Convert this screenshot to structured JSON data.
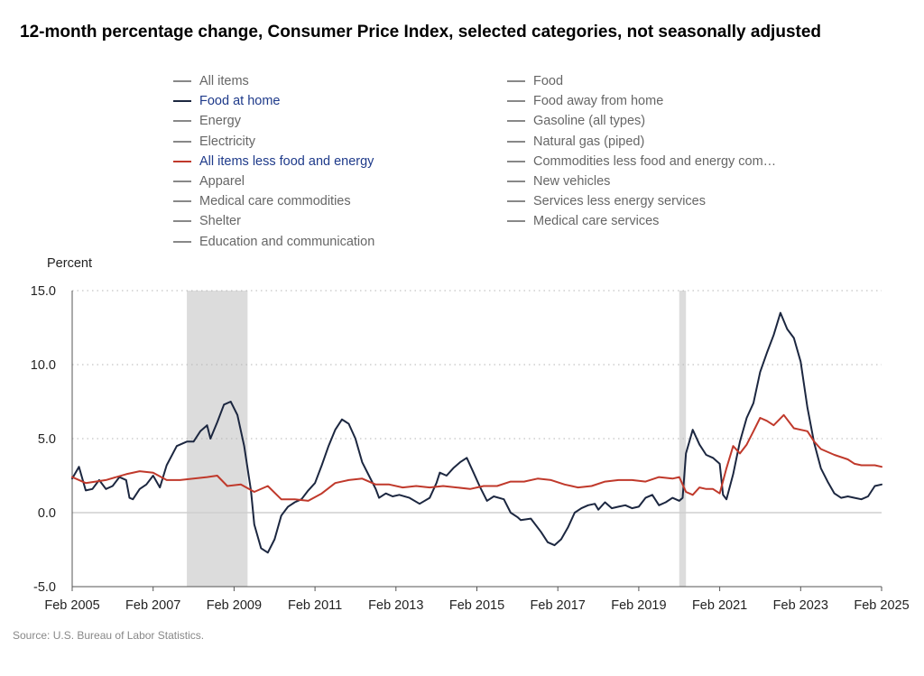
{
  "title": "12-month percentage change, Consumer Price Index, selected categories, not seasonally adjusted",
  "source": "Source: U.S. Bureau of Labor Statistics.",
  "legend": {
    "left": [
      {
        "label": "All items",
        "color": "#888888",
        "active": false
      },
      {
        "label": "Food at home",
        "color": "#1c2740",
        "active": true
      },
      {
        "label": "Energy",
        "color": "#888888",
        "active": false
      },
      {
        "label": "Electricity",
        "color": "#888888",
        "active": false
      },
      {
        "label": "All items less food and energy",
        "color": "#c0392b",
        "active": true
      },
      {
        "label": "Apparel",
        "color": "#888888",
        "active": false
      },
      {
        "label": "Medical care commodities",
        "color": "#888888",
        "active": false
      },
      {
        "label": "Shelter",
        "color": "#888888",
        "active": false
      },
      {
        "label": "Education and communication",
        "color": "#888888",
        "active": false
      }
    ],
    "right": [
      {
        "label": "Food",
        "color": "#888888",
        "active": false
      },
      {
        "label": "Food away from home",
        "color": "#888888",
        "active": false
      },
      {
        "label": "Gasoline (all types)",
        "color": "#888888",
        "active": false
      },
      {
        "label": "Natural gas (piped)",
        "color": "#888888",
        "active": false
      },
      {
        "label": "Commodities less food and energy com…",
        "color": "#888888",
        "active": false
      },
      {
        "label": "New vehicles",
        "color": "#888888",
        "active": false
      },
      {
        "label": "Services less energy services",
        "color": "#888888",
        "active": false
      },
      {
        "label": "Medical care services",
        "color": "#888888",
        "active": false
      }
    ]
  },
  "chart_data": {
    "type": "line",
    "title": "12-month percentage change, Consumer Price Index, selected categories, not seasonally adjusted",
    "ylabel": "Percent",
    "xlabel": "",
    "ylim": [
      -5,
      15
    ],
    "xlim": [
      "2005-02",
      "2025-02"
    ],
    "yticks": [
      15.0,
      10.0,
      5.0,
      0.0,
      -5.0
    ],
    "ytick_labels": [
      "15.0",
      "10.0",
      "5.0",
      "0.0",
      "-5.0"
    ],
    "xtick_labels": [
      "Feb 2005",
      "Feb 2007",
      "Feb 2009",
      "Feb 2011",
      "Feb 2013",
      "Feb 2015",
      "Feb 2017",
      "Feb 2019",
      "Feb 2021",
      "Feb 2023",
      "Feb 2025"
    ],
    "grid": "horizontal dotted",
    "recessions": [
      {
        "start": "2007-12",
        "end": "2009-06"
      },
      {
        "start": "2020-02",
        "end": "2020-04"
      }
    ],
    "series": [
      {
        "name": "Food at home",
        "color": "#1c2740",
        "points": [
          [
            "2005-02",
            2.3
          ],
          [
            "2005-04",
            3.1
          ],
          [
            "2005-06",
            1.5
          ],
          [
            "2005-08",
            1.6
          ],
          [
            "2005-10",
            2.2
          ],
          [
            "2005-12",
            1.6
          ],
          [
            "2006-02",
            1.8
          ],
          [
            "2006-04",
            2.4
          ],
          [
            "2006-06",
            2.2
          ],
          [
            "2006-07",
            1.0
          ],
          [
            "2006-08",
            0.9
          ],
          [
            "2006-10",
            1.6
          ],
          [
            "2006-12",
            1.9
          ],
          [
            "2007-02",
            2.5
          ],
          [
            "2007-04",
            1.7
          ],
          [
            "2007-06",
            3.2
          ],
          [
            "2007-09",
            4.5
          ],
          [
            "2007-12",
            4.8
          ],
          [
            "2008-02",
            4.8
          ],
          [
            "2008-04",
            5.5
          ],
          [
            "2008-06",
            5.9
          ],
          [
            "2008-07",
            5.0
          ],
          [
            "2008-09",
            6.1
          ],
          [
            "2008-11",
            7.3
          ],
          [
            "2009-01",
            7.5
          ],
          [
            "2009-03",
            6.6
          ],
          [
            "2009-05",
            4.5
          ],
          [
            "2009-07",
            1.5
          ],
          [
            "2009-08",
            -0.8
          ],
          [
            "2009-10",
            -2.4
          ],
          [
            "2009-12",
            -2.7
          ],
          [
            "2010-02",
            -1.8
          ],
          [
            "2010-04",
            -0.2
          ],
          [
            "2010-06",
            0.4
          ],
          [
            "2010-08",
            0.7
          ],
          [
            "2010-10",
            0.9
          ],
          [
            "2010-12",
            1.5
          ],
          [
            "2011-02",
            2.0
          ],
          [
            "2011-04",
            3.2
          ],
          [
            "2011-06",
            4.5
          ],
          [
            "2011-08",
            5.6
          ],
          [
            "2011-10",
            6.3
          ],
          [
            "2011-12",
            6.0
          ],
          [
            "2012-02",
            5.0
          ],
          [
            "2012-04",
            3.4
          ],
          [
            "2012-06",
            2.5
          ],
          [
            "2012-08",
            1.6
          ],
          [
            "2012-09",
            1.0
          ],
          [
            "2012-11",
            1.3
          ],
          [
            "2013-01",
            1.1
          ],
          [
            "2013-03",
            1.2
          ],
          [
            "2013-06",
            1.0
          ],
          [
            "2013-09",
            0.6
          ],
          [
            "2013-12",
            1.0
          ],
          [
            "2014-02",
            2.0
          ],
          [
            "2014-03",
            2.7
          ],
          [
            "2014-05",
            2.5
          ],
          [
            "2014-07",
            3.0
          ],
          [
            "2014-09",
            3.4
          ],
          [
            "2014-11",
            3.7
          ],
          [
            "2015-01",
            2.7
          ],
          [
            "2015-03",
            1.7
          ],
          [
            "2015-05",
            0.8
          ],
          [
            "2015-07",
            1.1
          ],
          [
            "2015-10",
            0.9
          ],
          [
            "2015-12",
            0.0
          ],
          [
            "2016-02",
            -0.3
          ],
          [
            "2016-03",
            -0.5
          ],
          [
            "2016-06",
            -0.4
          ],
          [
            "2016-09",
            -1.3
          ],
          [
            "2016-11",
            -2.0
          ],
          [
            "2017-01",
            -2.2
          ],
          [
            "2017-03",
            -1.8
          ],
          [
            "2017-05",
            -1.0
          ],
          [
            "2017-07",
            0.0
          ],
          [
            "2017-09",
            0.3
          ],
          [
            "2017-11",
            0.5
          ],
          [
            "2018-01",
            0.6
          ],
          [
            "2018-02",
            0.2
          ],
          [
            "2018-04",
            0.7
          ],
          [
            "2018-06",
            0.3
          ],
          [
            "2018-08",
            0.4
          ],
          [
            "2018-10",
            0.5
          ],
          [
            "2018-12",
            0.3
          ],
          [
            "2019-02",
            0.4
          ],
          [
            "2019-04",
            1.0
          ],
          [
            "2019-06",
            1.2
          ],
          [
            "2019-08",
            0.5
          ],
          [
            "2019-10",
            0.7
          ],
          [
            "2019-12",
            1.0
          ],
          [
            "2020-02",
            0.8
          ],
          [
            "2020-03",
            1.0
          ],
          [
            "2020-04",
            4.0
          ],
          [
            "2020-06",
            5.6
          ],
          [
            "2020-08",
            4.6
          ],
          [
            "2020-10",
            3.9
          ],
          [
            "2020-12",
            3.7
          ],
          [
            "2021-02",
            3.3
          ],
          [
            "2021-03",
            1.2
          ],
          [
            "2021-04",
            0.9
          ],
          [
            "2021-06",
            2.6
          ],
          [
            "2021-08",
            4.8
          ],
          [
            "2021-10",
            6.4
          ],
          [
            "2021-12",
            7.4
          ],
          [
            "2022-02",
            9.5
          ],
          [
            "2022-04",
            10.8
          ],
          [
            "2022-06",
            12.0
          ],
          [
            "2022-08",
            13.5
          ],
          [
            "2022-10",
            12.4
          ],
          [
            "2022-12",
            11.8
          ],
          [
            "2023-02",
            10.2
          ],
          [
            "2023-04",
            7.1
          ],
          [
            "2023-06",
            4.7
          ],
          [
            "2023-08",
            3.0
          ],
          [
            "2023-10",
            2.1
          ],
          [
            "2023-12",
            1.3
          ],
          [
            "2024-02",
            1.0
          ],
          [
            "2024-04",
            1.1
          ],
          [
            "2024-06",
            1.0
          ],
          [
            "2024-08",
            0.9
          ],
          [
            "2024-10",
            1.1
          ],
          [
            "2024-12",
            1.8
          ],
          [
            "2025-02",
            1.9
          ]
        ]
      },
      {
        "name": "All items less food and energy",
        "color": "#c0392b",
        "points": [
          [
            "2005-02",
            2.4
          ],
          [
            "2005-06",
            2.0
          ],
          [
            "2005-12",
            2.2
          ],
          [
            "2006-06",
            2.6
          ],
          [
            "2006-10",
            2.8
          ],
          [
            "2007-02",
            2.7
          ],
          [
            "2007-06",
            2.2
          ],
          [
            "2007-10",
            2.2
          ],
          [
            "2008-02",
            2.3
          ],
          [
            "2008-06",
            2.4
          ],
          [
            "2008-09",
            2.5
          ],
          [
            "2008-12",
            1.8
          ],
          [
            "2009-04",
            1.9
          ],
          [
            "2009-08",
            1.4
          ],
          [
            "2009-12",
            1.8
          ],
          [
            "2010-04",
            0.9
          ],
          [
            "2010-08",
            0.9
          ],
          [
            "2010-12",
            0.8
          ],
          [
            "2011-04",
            1.3
          ],
          [
            "2011-08",
            2.0
          ],
          [
            "2011-12",
            2.2
          ],
          [
            "2012-04",
            2.3
          ],
          [
            "2012-08",
            1.9
          ],
          [
            "2012-12",
            1.9
          ],
          [
            "2013-04",
            1.7
          ],
          [
            "2013-08",
            1.8
          ],
          [
            "2013-12",
            1.7
          ],
          [
            "2014-04",
            1.8
          ],
          [
            "2014-08",
            1.7
          ],
          [
            "2014-12",
            1.6
          ],
          [
            "2015-04",
            1.8
          ],
          [
            "2015-08",
            1.8
          ],
          [
            "2015-12",
            2.1
          ],
          [
            "2016-04",
            2.1
          ],
          [
            "2016-08",
            2.3
          ],
          [
            "2016-12",
            2.2
          ],
          [
            "2017-04",
            1.9
          ],
          [
            "2017-08",
            1.7
          ],
          [
            "2017-12",
            1.8
          ],
          [
            "2018-04",
            2.1
          ],
          [
            "2018-08",
            2.2
          ],
          [
            "2018-12",
            2.2
          ],
          [
            "2019-04",
            2.1
          ],
          [
            "2019-08",
            2.4
          ],
          [
            "2019-12",
            2.3
          ],
          [
            "2020-02",
            2.4
          ],
          [
            "2020-04",
            1.4
          ],
          [
            "2020-06",
            1.2
          ],
          [
            "2020-08",
            1.7
          ],
          [
            "2020-10",
            1.6
          ],
          [
            "2020-12",
            1.6
          ],
          [
            "2021-02",
            1.3
          ],
          [
            "2021-04",
            3.0
          ],
          [
            "2021-06",
            4.5
          ],
          [
            "2021-08",
            4.0
          ],
          [
            "2021-10",
            4.6
          ],
          [
            "2021-12",
            5.5
          ],
          [
            "2022-02",
            6.4
          ],
          [
            "2022-04",
            6.2
          ],
          [
            "2022-06",
            5.9
          ],
          [
            "2022-09",
            6.6
          ],
          [
            "2022-12",
            5.7
          ],
          [
            "2023-04",
            5.5
          ],
          [
            "2023-06",
            4.8
          ],
          [
            "2023-08",
            4.3
          ],
          [
            "2023-12",
            3.9
          ],
          [
            "2024-04",
            3.6
          ],
          [
            "2024-06",
            3.3
          ],
          [
            "2024-08",
            3.2
          ],
          [
            "2024-12",
            3.2
          ],
          [
            "2025-02",
            3.1
          ]
        ]
      }
    ]
  }
}
